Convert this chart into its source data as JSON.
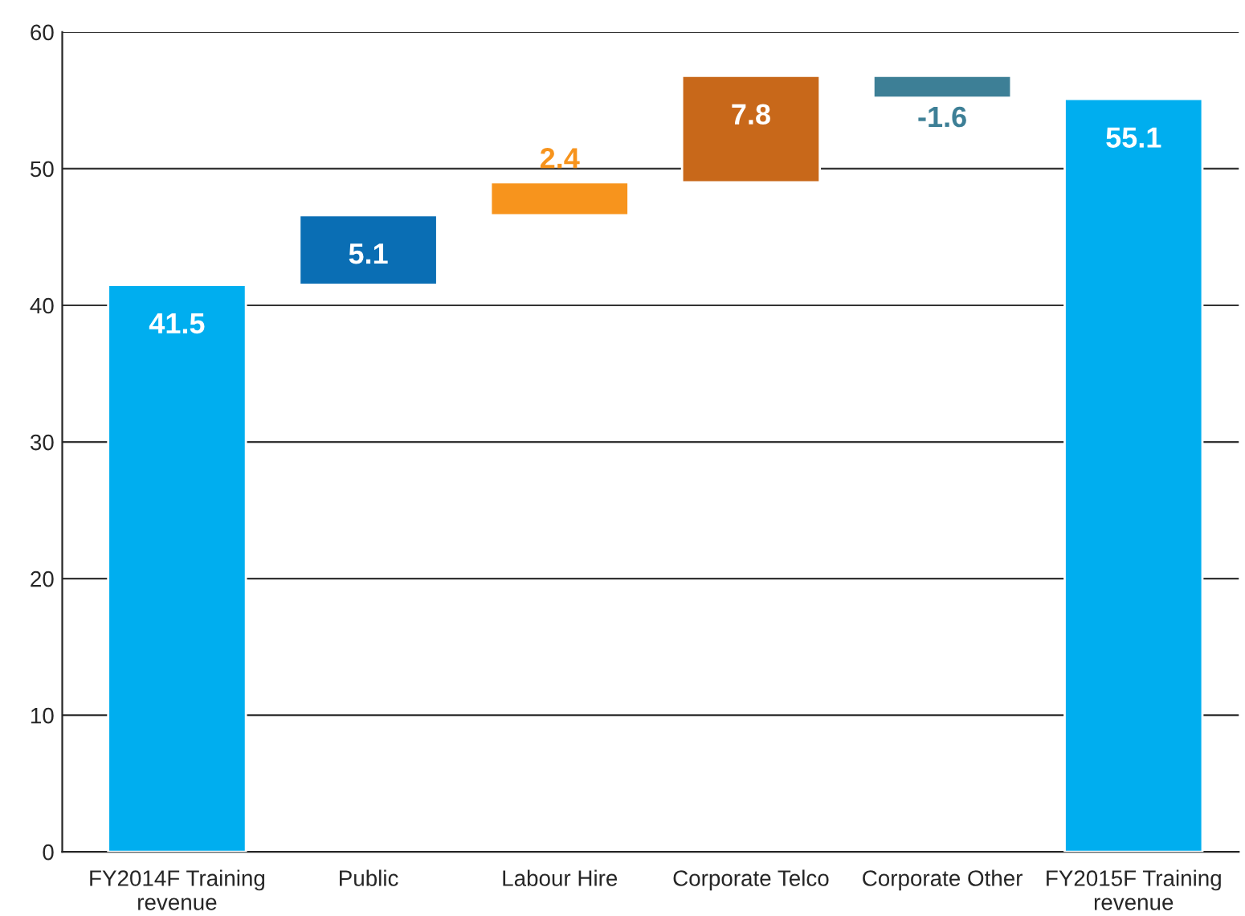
{
  "chart_data": {
    "type": "bar",
    "categories": [
      "FY2014F Training\nrevenue",
      "Public",
      "Labour Hire",
      "Corporate Telco",
      "Corporate Other",
      "FY2015F Training\nrevenue"
    ],
    "values": [
      41.5,
      5.1,
      2.4,
      7.8,
      -1.6,
      55.1
    ],
    "base": [
      0,
      41.5,
      46.6,
      49.0,
      56.8,
      0
    ],
    "colors": [
      "#00aeef",
      "#0a6eb4",
      "#f7941d",
      "#c8681a",
      "#3d7f96",
      "#00aeef"
    ],
    "ylim": [
      0,
      60
    ],
    "yticks": [
      0,
      10,
      20,
      30,
      40,
      50,
      60
    ],
    "grid": "y",
    "data_labels": true
  }
}
